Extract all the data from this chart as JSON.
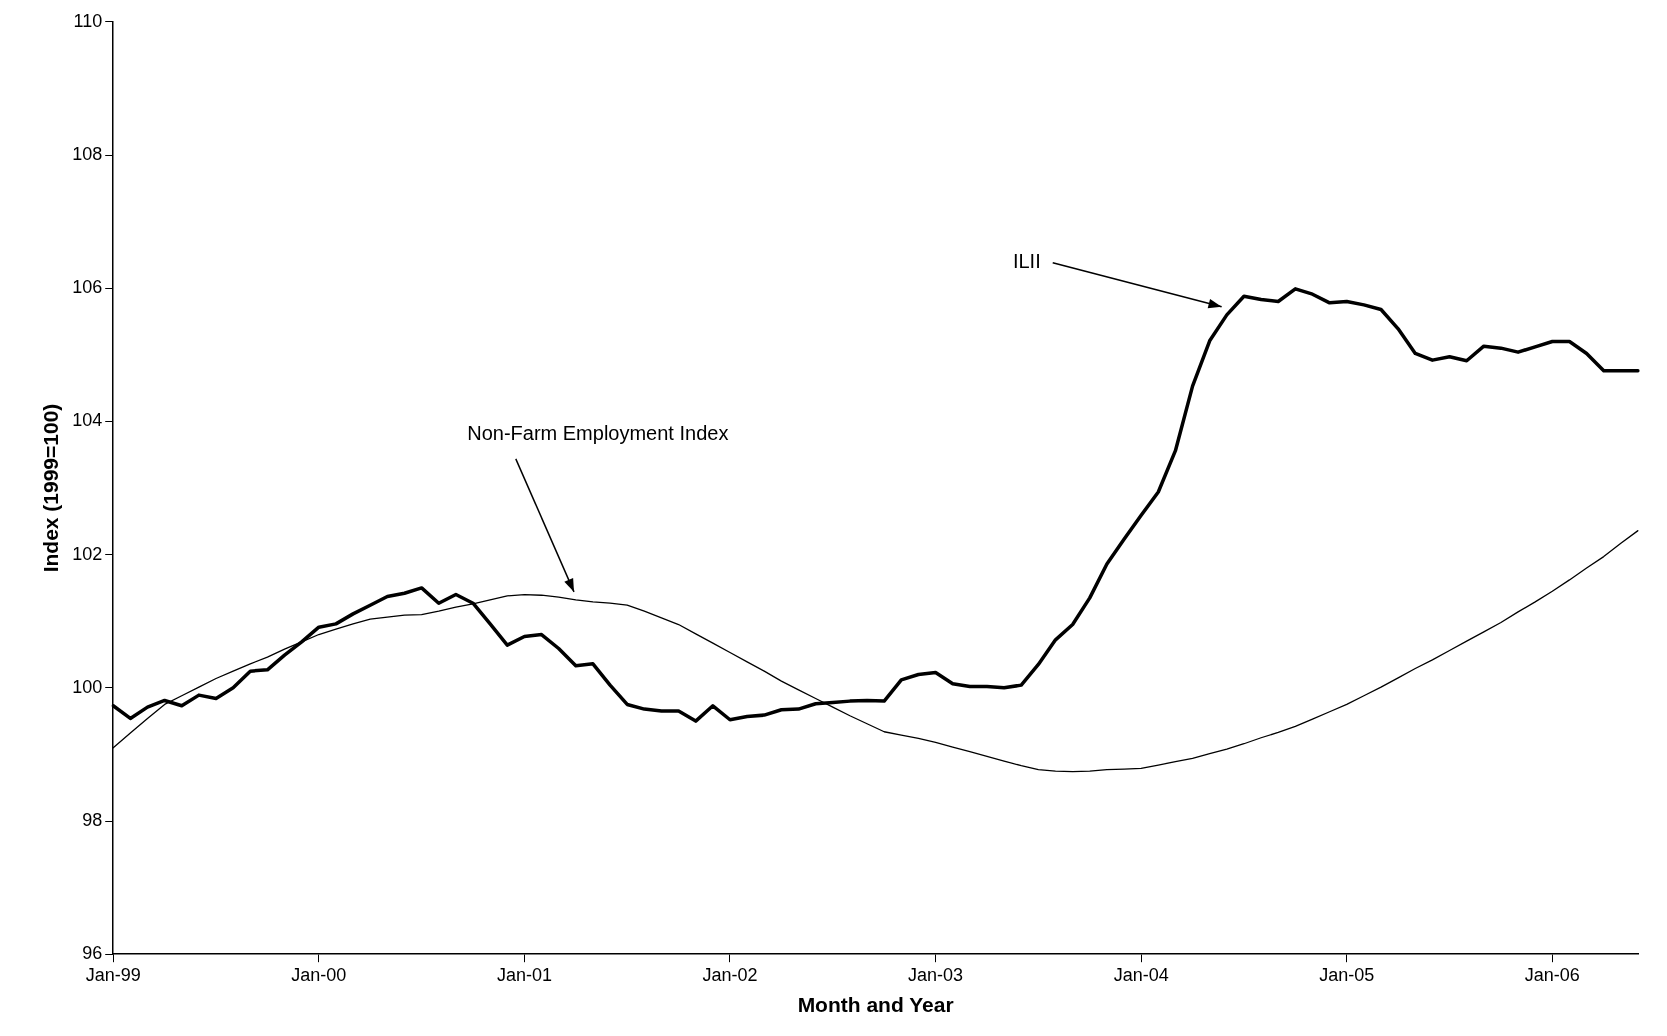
{
  "chart_data": {
    "type": "line",
    "xlabel": "Month and Year",
    "ylabel": "Index (1999=100)",
    "categories": [
      "Jan-99",
      null,
      null,
      null,
      null,
      null,
      null,
      null,
      null,
      null,
      null,
      null,
      "Jan-00",
      null,
      null,
      null,
      null,
      null,
      null,
      null,
      null,
      null,
      null,
      null,
      "Jan-01",
      null,
      null,
      null,
      null,
      null,
      null,
      null,
      null,
      null,
      null,
      null,
      "Jan-02",
      null,
      null,
      null,
      null,
      null,
      null,
      null,
      null,
      null,
      null,
      null,
      "Jan-03",
      null,
      null,
      null,
      null,
      null,
      null,
      null,
      null,
      null,
      null,
      null,
      "Jan-04",
      null,
      null,
      null,
      null,
      null,
      null,
      null,
      null,
      null,
      null,
      null,
      "Jan-05",
      null,
      null,
      null,
      null,
      null,
      null,
      null,
      null,
      null,
      null,
      null,
      "Jan-06",
      null,
      null,
      null,
      null,
      null
    ],
    "series": [
      {
        "name": "ILII",
        "color": "#000000",
        "values": [
          99.73,
          99.54,
          99.71,
          99.81,
          99.73,
          99.89,
          99.84,
          100.0,
          100.25,
          100.27,
          100.49,
          100.69,
          100.91,
          100.96,
          101.11,
          101.24,
          101.37,
          101.42,
          101.5,
          101.27,
          101.4,
          101.27,
          100.96,
          100.64,
          100.77,
          100.8,
          100.59,
          100.33,
          100.36,
          100.04,
          99.75,
          99.68,
          99.65,
          99.65,
          99.5,
          99.73,
          99.52,
          99.57,
          99.59,
          99.67,
          99.68,
          99.76,
          99.78,
          99.8,
          99.81,
          99.8,
          100.12,
          100.2,
          100.23,
          100.06,
          100.02,
          100.02,
          100.0,
          100.04,
          100.35,
          100.72,
          100.95,
          101.35,
          101.86,
          102.23,
          102.59,
          102.94,
          103.56,
          104.53,
          105.21,
          105.6,
          105.88,
          105.83,
          105.8,
          105.99,
          105.91,
          105.78,
          105.8,
          105.75,
          105.68,
          105.39,
          105.02,
          104.92,
          104.97,
          104.91,
          105.13,
          105.1,
          105.04,
          105.12,
          105.2,
          105.2,
          105.02,
          104.76,
          104.76,
          104.76
        ]
      },
      {
        "name": "Non-Farm Employment Index",
        "color": "#000000",
        "values": [
          99.1,
          99.32,
          99.54,
          99.75,
          99.88,
          100.01,
          100.14,
          100.25,
          100.36,
          100.46,
          100.58,
          100.69,
          100.8,
          100.88,
          100.96,
          101.03,
          101.06,
          101.09,
          101.1,
          101.15,
          101.21,
          101.26,
          101.32,
          101.38,
          101.4,
          101.39,
          101.36,
          101.32,
          101.29,
          101.27,
          101.24,
          101.15,
          101.05,
          100.95,
          100.81,
          100.67,
          100.53,
          100.39,
          100.25,
          100.1,
          99.97,
          99.84,
          99.71,
          99.58,
          99.46,
          99.34,
          99.29,
          99.24,
          99.18,
          99.11,
          99.04,
          98.97,
          98.9,
          98.83,
          98.77,
          98.75,
          98.74,
          98.75,
          98.77,
          98.78,
          98.79,
          98.84,
          98.89,
          98.94,
          99.01,
          99.08,
          99.16,
          99.25,
          99.33,
          99.42,
          99.53,
          99.64,
          99.75,
          99.88,
          100.01,
          100.15,
          100.29,
          100.42,
          100.56,
          100.7,
          100.84,
          100.98,
          101.14,
          101.29,
          101.45,
          101.62,
          101.8,
          101.97,
          102.17,
          102.36
        ]
      }
    ],
    "ylim": [
      96,
      110
    ],
    "yticks": [
      96,
      98,
      100,
      102,
      104,
      106,
      108,
      110
    ],
    "grid": false,
    "legend": false,
    "marker": "none",
    "line_style": "solid"
  }
}
